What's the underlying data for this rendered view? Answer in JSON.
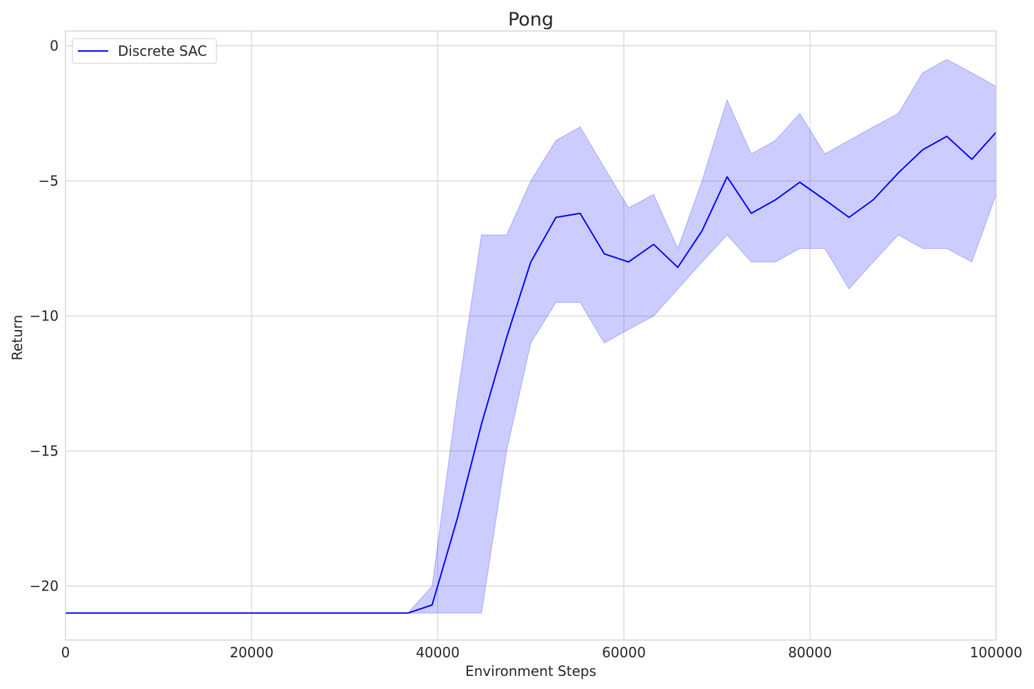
{
  "chart_data": {
    "type": "line",
    "title": "Pong",
    "xlabel": "Environment Steps",
    "ylabel": "Return",
    "xlim": [
      0,
      100000
    ],
    "ylim": [
      -22,
      0.55
    ],
    "xticks": [
      0,
      20000,
      40000,
      60000,
      80000,
      100000
    ],
    "yticks": [
      0,
      -5,
      -10,
      -15,
      -20
    ],
    "xtick_labels": [
      "0",
      "20000",
      "40000",
      "60000",
      "80000",
      "100000"
    ],
    "ytick_labels": [
      "0",
      "−5",
      "−10",
      "−15",
      "−20"
    ],
    "grid": true,
    "legend_position": "top-left",
    "colors": {
      "line": "#0000ff",
      "band": "#0000ff",
      "grid": "#cccccc"
    },
    "series": [
      {
        "name": "Discrete SAC",
        "x": [
          0,
          36800,
          39400,
          42100,
          44700,
          47400,
          50000,
          52700,
          55300,
          57900,
          60500,
          63200,
          65800,
          68400,
          71100,
          73700,
          76300,
          78900,
          81600,
          84200,
          86800,
          89500,
          92100,
          94700,
          97400,
          100000
        ],
        "y": [
          -21,
          -21,
          -20.7,
          -17.5,
          -14,
          -10.8,
          -8,
          -6.35,
          -6.2,
          -7.7,
          -8,
          -7.35,
          -8.2,
          -6.85,
          -4.85,
          -6.2,
          -5.7,
          -5.05,
          -5.7,
          -6.35,
          -5.7,
          -4.7,
          -3.85,
          -3.35,
          -4.2,
          -3.2
        ],
        "lower": [
          -21,
          -21,
          -21,
          -21,
          -21,
          -15,
          -11,
          -9.5,
          -9.5,
          -11,
          -10.5,
          -10,
          -9,
          -8,
          -7,
          -8,
          -8,
          -7.5,
          -7.5,
          -9,
          -8,
          -7,
          -7.5,
          -7.5,
          -8,
          -5.5
        ],
        "upper": [
          -21,
          -21,
          -20,
          -13,
          -7,
          -7,
          -5,
          -3.5,
          -3,
          -4.5,
          -6,
          -5.5,
          -7.5,
          -5,
          -2,
          -4,
          -3.5,
          -2.5,
          -4,
          -3.5,
          -3,
          -2.5,
          -1,
          -0.5,
          -1,
          -1.5
        ]
      }
    ]
  }
}
